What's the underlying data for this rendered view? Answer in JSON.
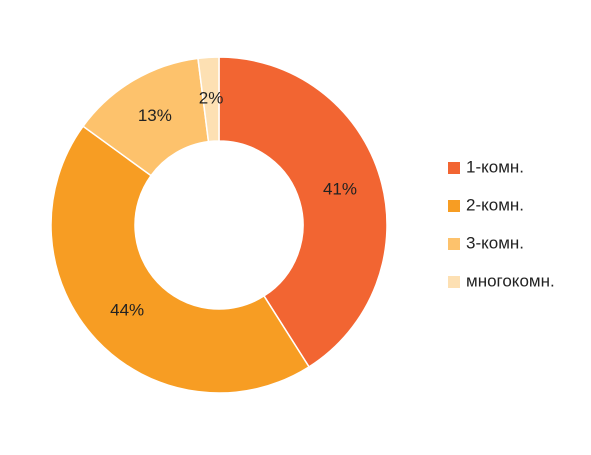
{
  "chart_data": {
    "type": "donut",
    "categories": [
      "1-комн.",
      "2-комн.",
      "3-комн.",
      "многокомн."
    ],
    "values": [
      41,
      44,
      13,
      2
    ],
    "value_labels": [
      "41%",
      "44%",
      "13%",
      "2%"
    ],
    "colors": [
      "#f26532",
      "#f79d23",
      "#fdc26c",
      "#fde0b3"
    ],
    "legend": "right"
  }
}
